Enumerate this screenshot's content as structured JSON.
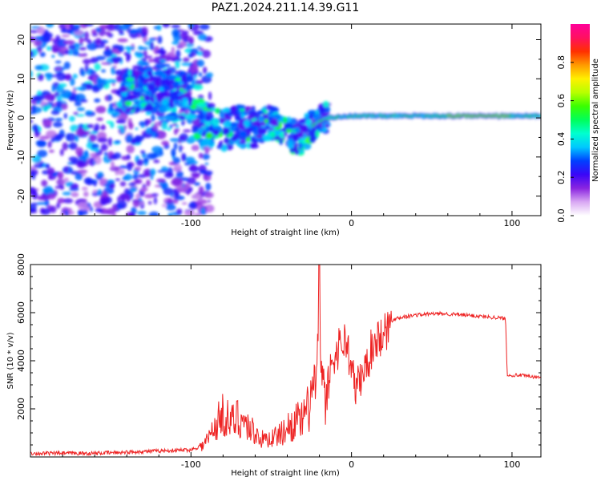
{
  "title": "PAZ1.2024.211.14.39.G11",
  "spectrogram": {
    "xlabel": "Height of straight line (km)",
    "ylabel": "Frequency (Hz)",
    "xlim": [
      -200,
      118
    ],
    "ylim": [
      -25,
      24
    ],
    "xticks": [
      -100,
      0,
      100
    ],
    "yticks": [
      -20,
      -10,
      0,
      10,
      20
    ],
    "colorbar": {
      "label": "Normalized spectral amplitude",
      "ticks": [
        0.0,
        0.2,
        0.4,
        0.6,
        0.8
      ],
      "range": [
        0,
        1
      ],
      "colormap": "gist_ncar_r",
      "stops": [
        "#ffffff",
        "#d9a8f3",
        "#8a25e0",
        "#3a06f7",
        "#0040ff",
        "#00c8ff",
        "#00ffd0",
        "#00ff5a",
        "#3aff00",
        "#b8ff00",
        "#fff000",
        "#ff9a00",
        "#ff3000",
        "#ff1060",
        "#ff0099"
      ]
    },
    "trace": [
      {
        "x": -100,
        "y": 1.5
      },
      {
        "x": -90,
        "y": -1.5
      },
      {
        "x": -80,
        "y": -3
      },
      {
        "x": -70,
        "y": -2
      },
      {
        "x": -60,
        "y": -2.5
      },
      {
        "x": -50,
        "y": -1
      },
      {
        "x": -40,
        "y": -4
      },
      {
        "x": -32,
        "y": -5
      },
      {
        "x": -25,
        "y": -2
      },
      {
        "x": -15,
        "y": 0
      },
      {
        "x": 0,
        "y": 0.5
      },
      {
        "x": 20,
        "y": 0.5
      },
      {
        "x": 60,
        "y": 0.5
      },
      {
        "x": 118,
        "y": 0.5
      }
    ]
  },
  "chart_data": [
    {
      "type": "heatmap",
      "title": "PAZ1.2024.211.14.39.G11",
      "xlabel": "Height of straight line (km)",
      "ylabel": "Frequency (Hz)",
      "xlim": [
        -200,
        118
      ],
      "ylim": [
        -25,
        24
      ],
      "colorbar_label": "Normalized spectral amplitude"
    },
    {
      "type": "line",
      "xlabel": "Height of straight line (km)",
      "ylabel": "SNR (10 * v/v)",
      "xlim": [
        -200,
        118
      ],
      "ylim": [
        0,
        8000
      ],
      "xticks": [
        -100,
        0,
        100
      ],
      "yticks": [
        2000,
        4000,
        6000,
        8000
      ],
      "series": [
        {
          "color": "#ee2222",
          "x": [
            -200,
            -160,
            -120,
            -100,
            -92,
            -88,
            -84,
            -80,
            -75,
            -70,
            -65,
            -60,
            -55,
            -50,
            -45,
            -40,
            -35,
            -30,
            -27,
            -24,
            -21,
            -20,
            -19,
            -18,
            -16,
            -14,
            -12,
            -10,
            -8,
            -5,
            -2,
            0,
            3,
            5,
            8,
            10,
            12,
            14,
            16,
            18,
            20,
            22,
            25,
            28,
            30,
            40,
            50,
            60,
            70,
            80,
            90,
            96,
            97,
            98,
            105,
            110,
            118
          ],
          "values": [
            150,
            150,
            250,
            300,
            500,
            900,
            1400,
            1800,
            1400,
            1700,
            1300,
            1000,
            700,
            800,
            900,
            1200,
            1500,
            1500,
            2000,
            2800,
            3500,
            8000,
            3000,
            3600,
            2000,
            3300,
            4000,
            4200,
            4600,
            4900,
            4500,
            3500,
            2800,
            3200,
            3500,
            4000,
            4400,
            4700,
            5000,
            4900,
            5500,
            5300,
            5600,
            5800,
            5800,
            5900,
            5950,
            5950,
            5900,
            5850,
            5800,
            5750,
            3450,
            3400,
            3400,
            3350,
            3300
          ]
        }
      ]
    }
  ],
  "snr": {
    "xlabel": "Height of straight line (km)",
    "ylabel": "SNR (10 * v/v)"
  }
}
